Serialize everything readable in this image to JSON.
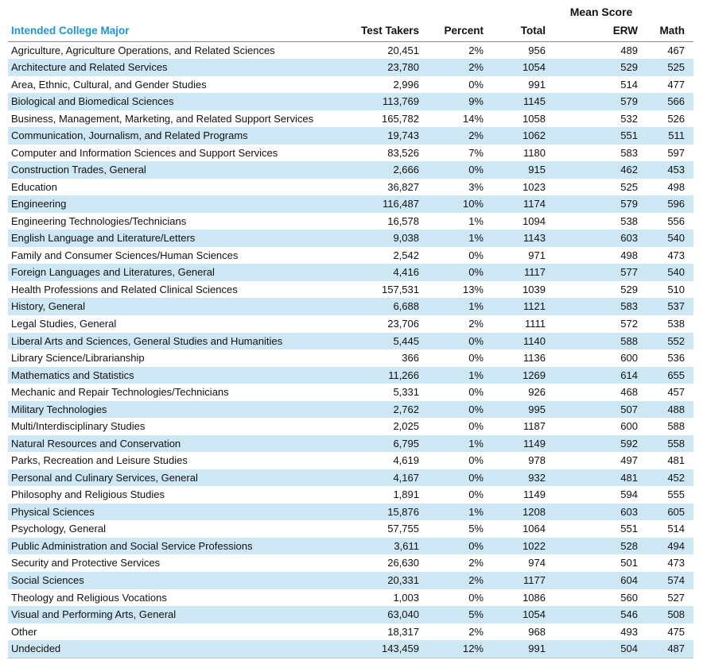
{
  "colors": {
    "header_blue": "#2097D4",
    "stripe_blue": "#CDE7F5",
    "text": "#111111",
    "header_rule": "#8a8a8a",
    "bottom_rule": "#b7c3c9"
  },
  "table": {
    "group_header": "Mean Score",
    "major_column_header": "Intended College Major",
    "value_column_headers": [
      "Test Takers",
      "Percent",
      "Total",
      "ERW",
      "Math"
    ],
    "rows": [
      {
        "major": "Agriculture, Agriculture Operations, and Related Sciences",
        "test_takers": "20,451",
        "percent": "2%",
        "total": "956",
        "erw": "489",
        "math": "467"
      },
      {
        "major": "Architecture and Related Services",
        "test_takers": "23,780",
        "percent": "2%",
        "total": "1054",
        "erw": "529",
        "math": "525"
      },
      {
        "major": "Area, Ethnic, Cultural, and Gender Studies",
        "test_takers": "2,996",
        "percent": "0%",
        "total": "991",
        "erw": "514",
        "math": "477"
      },
      {
        "major": "Biological and Biomedical Sciences",
        "test_takers": "113,769",
        "percent": "9%",
        "total": "1145",
        "erw": "579",
        "math": "566"
      },
      {
        "major": "Business, Management, Marketing, and Related Support Services",
        "test_takers": "165,782",
        "percent": "14%",
        "total": "1058",
        "erw": "532",
        "math": "526"
      },
      {
        "major": "Communication, Journalism, and Related Programs",
        "test_takers": "19,743",
        "percent": "2%",
        "total": "1062",
        "erw": "551",
        "math": "511"
      },
      {
        "major": "Computer and Information Sciences and Support Services",
        "test_takers": "83,526",
        "percent": "7%",
        "total": "1180",
        "erw": "583",
        "math": "597"
      },
      {
        "major": "Construction Trades, General",
        "test_takers": "2,666",
        "percent": "0%",
        "total": "915",
        "erw": "462",
        "math": "453"
      },
      {
        "major": "Education",
        "test_takers": "36,827",
        "percent": "3%",
        "total": "1023",
        "erw": "525",
        "math": "498"
      },
      {
        "major": "Engineering",
        "test_takers": "116,487",
        "percent": "10%",
        "total": "1174",
        "erw": "579",
        "math": "596"
      },
      {
        "major": "Engineering Technologies/Technicians",
        "test_takers": "16,578",
        "percent": "1%",
        "total": "1094",
        "erw": "538",
        "math": "556"
      },
      {
        "major": "English Language and Literature/Letters",
        "test_takers": "9,038",
        "percent": "1%",
        "total": "1143",
        "erw": "603",
        "math": "540"
      },
      {
        "major": "Family and Consumer Sciences/Human Sciences",
        "test_takers": "2,542",
        "percent": "0%",
        "total": "971",
        "erw": "498",
        "math": "473"
      },
      {
        "major": "Foreign Languages and Literatures, General",
        "test_takers": "4,416",
        "percent": "0%",
        "total": "1117",
        "erw": "577",
        "math": "540"
      },
      {
        "major": "Health Professions and Related Clinical Sciences",
        "test_takers": "157,531",
        "percent": "13%",
        "total": "1039",
        "erw": "529",
        "math": "510"
      },
      {
        "major": "History, General",
        "test_takers": "6,688",
        "percent": "1%",
        "total": "1121",
        "erw": "583",
        "math": "537"
      },
      {
        "major": "Legal Studies, General",
        "test_takers": "23,706",
        "percent": "2%",
        "total": "1111",
        "erw": "572",
        "math": "538"
      },
      {
        "major": "Liberal Arts and Sciences, General Studies and Humanities",
        "test_takers": "5,445",
        "percent": "0%",
        "total": "1140",
        "erw": "588",
        "math": "552"
      },
      {
        "major": "Library Science/Librarianship",
        "test_takers": "366",
        "percent": "0%",
        "total": "1136",
        "erw": "600",
        "math": "536"
      },
      {
        "major": "Mathematics and Statistics",
        "test_takers": "11,266",
        "percent": "1%",
        "total": "1269",
        "erw": "614",
        "math": "655"
      },
      {
        "major": "Mechanic and Repair Technologies/Technicians",
        "test_takers": "5,331",
        "percent": "0%",
        "total": "926",
        "erw": "468",
        "math": "457"
      },
      {
        "major": "Military Technologies",
        "test_takers": "2,762",
        "percent": "0%",
        "total": "995",
        "erw": "507",
        "math": "488"
      },
      {
        "major": "Multi/Interdisciplinary Studies",
        "test_takers": "2,025",
        "percent": "0%",
        "total": "1187",
        "erw": "600",
        "math": "588"
      },
      {
        "major": "Natural Resources and Conservation",
        "test_takers": "6,795",
        "percent": "1%",
        "total": "1149",
        "erw": "592",
        "math": "558"
      },
      {
        "major": "Parks, Recreation and Leisure Studies",
        "test_takers": "4,619",
        "percent": "0%",
        "total": "978",
        "erw": "497",
        "math": "481"
      },
      {
        "major": "Personal and Culinary Services, General",
        "test_takers": "4,167",
        "percent": "0%",
        "total": "932",
        "erw": "481",
        "math": "452"
      },
      {
        "major": "Philosophy and Religious Studies",
        "test_takers": "1,891",
        "percent": "0%",
        "total": "1149",
        "erw": "594",
        "math": "555"
      },
      {
        "major": "Physical Sciences",
        "test_takers": "15,876",
        "percent": "1%",
        "total": "1208",
        "erw": "603",
        "math": "605"
      },
      {
        "major": "Psychology, General",
        "test_takers": "57,755",
        "percent": "5%",
        "total": "1064",
        "erw": "551",
        "math": "514"
      },
      {
        "major": "Public Administration and Social Service Professions",
        "test_takers": "3,611",
        "percent": "0%",
        "total": "1022",
        "erw": "528",
        "math": "494"
      },
      {
        "major": "Security and Protective Services",
        "test_takers": "26,630",
        "percent": "2%",
        "total": "974",
        "erw": "501",
        "math": "473"
      },
      {
        "major": "Social Sciences",
        "test_takers": "20,331",
        "percent": "2%",
        "total": "1177",
        "erw": "604",
        "math": "574"
      },
      {
        "major": "Theology and Religious Vocations",
        "test_takers": "1,003",
        "percent": "0%",
        "total": "1086",
        "erw": "560",
        "math": "527"
      },
      {
        "major": "Visual and Performing Arts, General",
        "test_takers": "63,040",
        "percent": "5%",
        "total": "1054",
        "erw": "546",
        "math": "508"
      },
      {
        "major": "Other",
        "test_takers": "18,317",
        "percent": "2%",
        "total": "968",
        "erw": "493",
        "math": "475"
      },
      {
        "major": "Undecided",
        "test_takers": "143,459",
        "percent": "12%",
        "total": "991",
        "erw": "504",
        "math": "487"
      }
    ]
  }
}
